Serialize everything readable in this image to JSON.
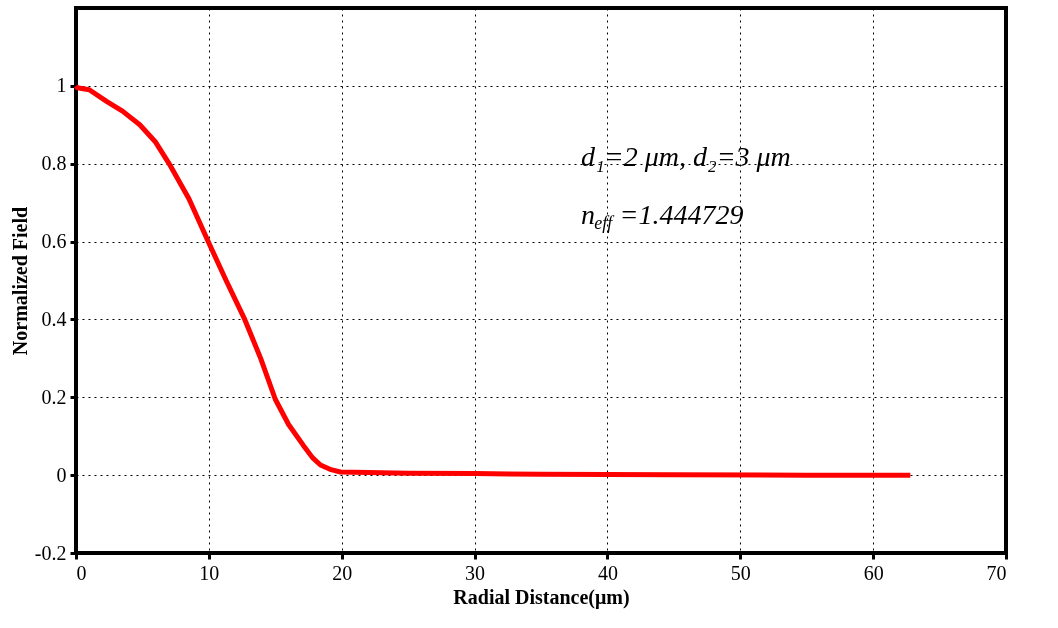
{
  "chart_data": {
    "type": "line",
    "xlabel": "Radial Distance(μm)",
    "ylabel": "Normalized Field",
    "annotations": [
      "d₁=2 μm, d₂=3 μm",
      "n$_{eff}$=1.444729"
    ],
    "series": [
      {
        "color": "#ff0000",
        "x": [
          0,
          0.1,
          1,
          2.3,
          3.5,
          4.8,
          6,
          7.1,
          8.5,
          9.95,
          11.3,
          12.7,
          13.9,
          15,
          16,
          17.1,
          17.8,
          18.4,
          19.2,
          19.9,
          22,
          25,
          30,
          35,
          45,
          55,
          62.8
        ],
        "values": [
          1,
          0.995,
          0.99,
          0.96,
          0.935,
          0.9,
          0.855,
          0.795,
          0.71,
          0.6,
          0.5,
          0.4,
          0.3,
          0.195,
          0.13,
          0.077,
          0.045,
          0.026,
          0.014,
          0.008,
          0.007,
          0.005,
          0.004,
          0.002,
          0.001,
          0,
          0
        ]
      }
    ],
    "xlim": [
      0,
      70
    ],
    "ylim": [
      -0.2,
      1.2
    ],
    "xticks": [
      0,
      10,
      20,
      30,
      40,
      50,
      60,
      70
    ],
    "yticks": [
      -0.2,
      0,
      0.2,
      0.4,
      0.6,
      0.8,
      1
    ],
    "grid": true,
    "line_style": "solid",
    "marker": "none"
  }
}
